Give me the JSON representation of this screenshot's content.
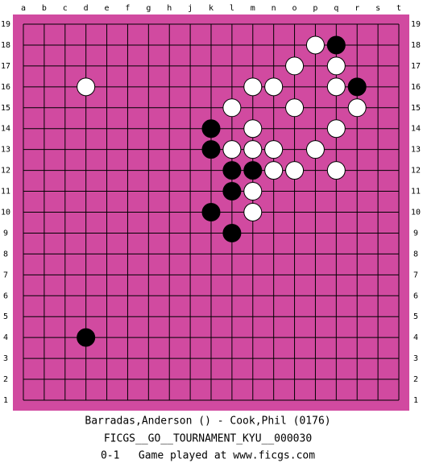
{
  "board": {
    "columns": [
      "a",
      "b",
      "c",
      "d",
      "e",
      "f",
      "g",
      "h",
      "j",
      "k",
      "l",
      "m",
      "n",
      "o",
      "p",
      "q",
      "r",
      "s",
      "t"
    ],
    "rows": [
      19,
      18,
      17,
      16,
      15,
      14,
      13,
      12,
      11,
      10,
      9,
      8,
      7,
      6,
      5,
      4,
      3,
      2,
      1
    ],
    "stones": [
      {
        "color": "black",
        "col": "q",
        "row": 18
      },
      {
        "color": "black",
        "col": "r",
        "row": 16
      },
      {
        "color": "black",
        "col": "k",
        "row": 14
      },
      {
        "color": "black",
        "col": "k",
        "row": 13
      },
      {
        "color": "black",
        "col": "l",
        "row": 12
      },
      {
        "color": "black",
        "col": "m",
        "row": 12
      },
      {
        "color": "black",
        "col": "l",
        "row": 11
      },
      {
        "color": "black",
        "col": "k",
        "row": 10
      },
      {
        "color": "black",
        "col": "l",
        "row": 9
      },
      {
        "color": "black",
        "col": "d",
        "row": 4
      },
      {
        "color": "white",
        "col": "p",
        "row": 18
      },
      {
        "color": "white",
        "col": "o",
        "row": 17
      },
      {
        "color": "white",
        "col": "q",
        "row": 17
      },
      {
        "color": "white",
        "col": "d",
        "row": 16
      },
      {
        "color": "white",
        "col": "m",
        "row": 16
      },
      {
        "color": "white",
        "col": "n",
        "row": 16
      },
      {
        "color": "white",
        "col": "q",
        "row": 16
      },
      {
        "color": "white",
        "col": "l",
        "row": 15
      },
      {
        "color": "white",
        "col": "o",
        "row": 15
      },
      {
        "color": "white",
        "col": "r",
        "row": 15
      },
      {
        "color": "white",
        "col": "m",
        "row": 14
      },
      {
        "color": "white",
        "col": "q",
        "row": 14
      },
      {
        "color": "white",
        "col": "l",
        "row": 13
      },
      {
        "color": "white",
        "col": "m",
        "row": 13
      },
      {
        "color": "white",
        "col": "n",
        "row": 13
      },
      {
        "color": "white",
        "col": "p",
        "row": 13
      },
      {
        "color": "white",
        "col": "n",
        "row": 12
      },
      {
        "color": "white",
        "col": "o",
        "row": 12
      },
      {
        "color": "white",
        "col": "q",
        "row": 12
      },
      {
        "color": "white",
        "col": "m",
        "row": 11
      },
      {
        "color": "white",
        "col": "m",
        "row": 10
      }
    ]
  },
  "footer": {
    "players": "Barradas,Anderson () - Cook,Phil (0176)",
    "event": "FICGS__GO__TOURNAMENT_KYU__000030",
    "result_line": "0-1   Game played at www.ficgs.com"
  }
}
